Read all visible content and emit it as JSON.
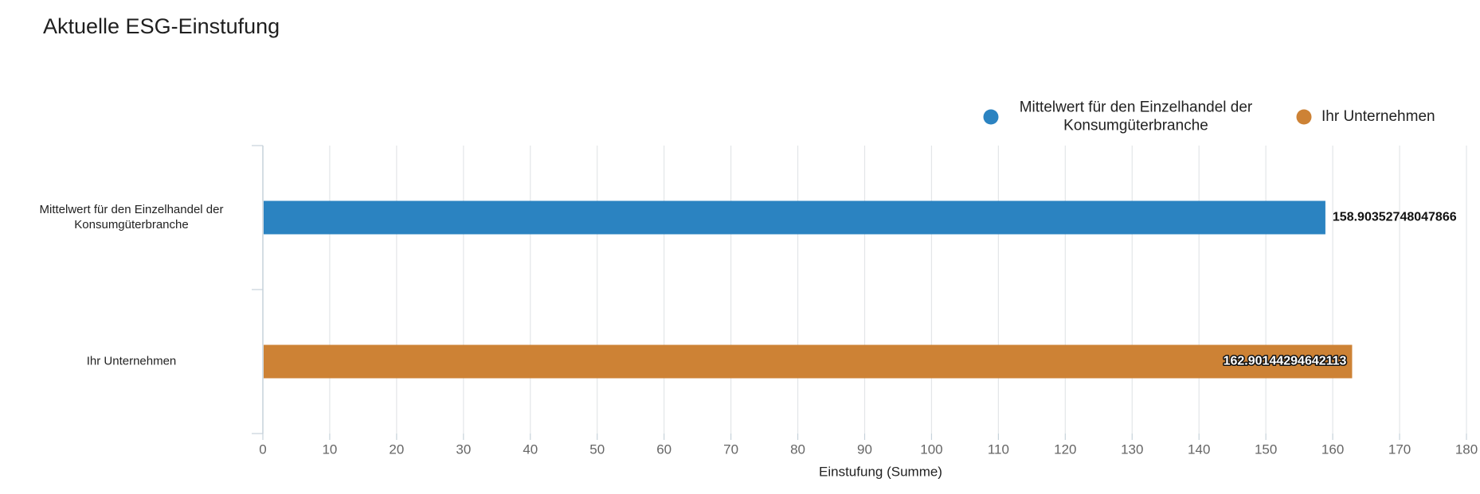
{
  "chart_data": {
    "type": "bar",
    "orientation": "horizontal",
    "title": "Aktuelle ESG-Einstufung",
    "xlabel": "Einstufung (Summe)",
    "ylabel": "",
    "xlim": [
      0,
      180
    ],
    "x_ticks": [
      "0",
      "10",
      "20",
      "30",
      "40",
      "50",
      "60",
      "70",
      "80",
      "90",
      "100",
      "110",
      "120",
      "130",
      "140",
      "150",
      "160",
      "170",
      "180"
    ],
    "grid": true,
    "legend_position": "top-right",
    "categories": [
      [
        "Mittelwert für den Einzelhandel der",
        "Konsumgüterbranche"
      ],
      [
        "Ihr Unternehmen"
      ]
    ],
    "series": [
      {
        "name": [
          "Mittelwert für den Einzelhandel der",
          "Konsumgüterbranche"
        ],
        "color": "#2b83c1",
        "value": 158.90352748047866,
        "label": "158.90352748047866"
      },
      {
        "name": [
          "Ihr Unternehmen"
        ],
        "color": "#cd8235",
        "value": 162.90144294642113,
        "label": "162.90144294642113"
      }
    ]
  }
}
